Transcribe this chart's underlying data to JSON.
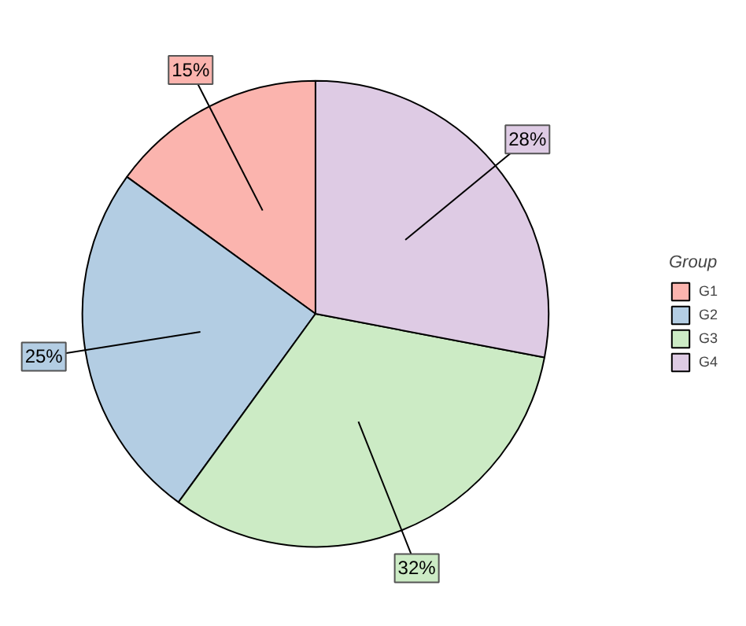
{
  "chart_data": {
    "type": "pie",
    "legend_title": "Group",
    "legend": "right",
    "categories": [
      "G1",
      "G2",
      "G3",
      "G4"
    ],
    "values": [
      15,
      25,
      32,
      28
    ],
    "value_labels": [
      "15%",
      "25%",
      "32%",
      "28%"
    ],
    "colors": [
      "#fbb4ae",
      "#b3cde3",
      "#ccebc5",
      "#decbe4"
    ]
  }
}
